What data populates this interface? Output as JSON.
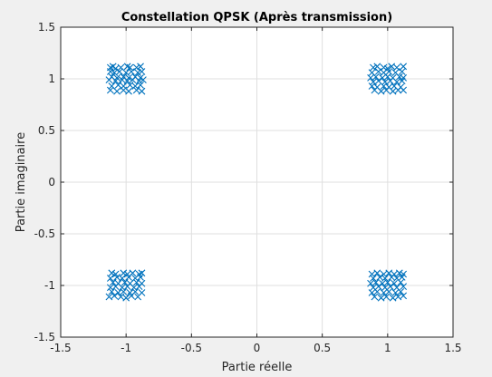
{
  "chart_data": {
    "type": "scatter",
    "title": "Constellation QPSK (Après transmission)",
    "xlabel": "Partie réelle",
    "ylabel": "Partie imaginaire",
    "xlim": [
      -1.5,
      1.5
    ],
    "ylim": [
      -1.5,
      1.5
    ],
    "xticks": [
      -1.5,
      -1,
      -0.5,
      0,
      0.5,
      1,
      1.5
    ],
    "yticks": [
      -1.5,
      -1,
      -0.5,
      0,
      0.5,
      1,
      1.5
    ],
    "xtick_labels": [
      "-1.5",
      "-1",
      "-0.5",
      "0",
      "0.5",
      "1",
      "1.5"
    ],
    "ytick_labels": [
      "-1.5",
      "-1",
      "-0.5",
      "0",
      "0.5",
      "1",
      "1.5"
    ],
    "grid": true,
    "marker": "x",
    "color": "#0072bd",
    "series": [
      {
        "points": [
          [
            -1.12,
            1.11
          ],
          [
            -1.1,
            1.12
          ],
          [
            -1.08,
            1.1
          ],
          [
            -1.04,
            1.11
          ],
          [
            -0.99,
            1.12
          ],
          [
            -0.97,
            1.11
          ],
          [
            -0.92,
            1.11
          ],
          [
            -0.89,
            1.12
          ],
          [
            -1.12,
            1.07
          ],
          [
            -1.09,
            1.06
          ],
          [
            -1.05,
            1.07
          ],
          [
            -1.0,
            1.06
          ],
          [
            -0.96,
            1.07
          ],
          [
            -0.91,
            1.06
          ],
          [
            -0.88,
            1.07
          ],
          [
            -1.11,
            1.02
          ],
          [
            -1.07,
            1.01
          ],
          [
            -1.02,
            1.02
          ],
          [
            -0.98,
            1.01
          ],
          [
            -0.93,
            1.02
          ],
          [
            -0.89,
            1.01
          ],
          [
            -1.13,
            0.99
          ],
          [
            -1.08,
            0.98
          ],
          [
            -1.03,
            0.99
          ],
          [
            -0.99,
            0.98
          ],
          [
            -0.95,
            0.99
          ],
          [
            -0.9,
            0.98
          ],
          [
            -0.87,
            0.99
          ],
          [
            -1.11,
            0.93
          ],
          [
            -1.06,
            0.94
          ],
          [
            -1.02,
            0.93
          ],
          [
            -0.97,
            0.94
          ],
          [
            -0.93,
            0.93
          ],
          [
            -0.89,
            0.94
          ],
          [
            -1.12,
            0.89
          ],
          [
            -1.07,
            0.88
          ],
          [
            -1.02,
            0.89
          ],
          [
            -0.98,
            0.88
          ],
          [
            -0.92,
            0.89
          ],
          [
            -0.88,
            0.88
          ],
          [
            0.89,
            1.11
          ],
          [
            0.92,
            1.12
          ],
          [
            0.97,
            1.11
          ],
          [
            1.0,
            1.1
          ],
          [
            1.03,
            1.12
          ],
          [
            1.07,
            1.11
          ],
          [
            1.12,
            1.12
          ],
          [
            0.88,
            1.06
          ],
          [
            0.93,
            1.07
          ],
          [
            0.97,
            1.06
          ],
          [
            1.01,
            1.07
          ],
          [
            1.06,
            1.06
          ],
          [
            1.11,
            1.07
          ],
          [
            0.87,
            1.01
          ],
          [
            0.91,
            1.02
          ],
          [
            0.96,
            1.01
          ],
          [
            1.0,
            1.02
          ],
          [
            1.04,
            1.01
          ],
          [
            1.09,
            1.02
          ],
          [
            1.12,
            1.01
          ],
          [
            0.89,
            0.97
          ],
          [
            0.93,
            0.98
          ],
          [
            0.98,
            0.97
          ],
          [
            1.02,
            0.98
          ],
          [
            1.07,
            0.97
          ],
          [
            1.11,
            0.98
          ],
          [
            0.88,
            0.93
          ],
          [
            0.92,
            0.92
          ],
          [
            0.97,
            0.93
          ],
          [
            1.01,
            0.92
          ],
          [
            1.05,
            0.93
          ],
          [
            1.1,
            0.92
          ],
          [
            0.9,
            0.89
          ],
          [
            0.95,
            0.88
          ],
          [
            0.99,
            0.89
          ],
          [
            1.04,
            0.88
          ],
          [
            1.08,
            0.89
          ],
          [
            1.12,
            0.89
          ],
          [
            -1.11,
            -0.88
          ],
          [
            -1.08,
            -0.89
          ],
          [
            -1.02,
            -0.88
          ],
          [
            -0.99,
            -0.89
          ],
          [
            -0.95,
            -0.88
          ],
          [
            -0.9,
            -0.89
          ],
          [
            -0.88,
            -0.88
          ],
          [
            -1.12,
            -0.93
          ],
          [
            -1.07,
            -0.92
          ],
          [
            -1.03,
            -0.93
          ],
          [
            -0.98,
            -0.92
          ],
          [
            -0.93,
            -0.93
          ],
          [
            -0.89,
            -0.92
          ],
          [
            -1.1,
            -0.97
          ],
          [
            -1.06,
            -0.98
          ],
          [
            -1.01,
            -0.97
          ],
          [
            -0.97,
            -0.98
          ],
          [
            -0.92,
            -0.97
          ],
          [
            -0.88,
            -0.98
          ],
          [
            -1.12,
            -1.02
          ],
          [
            -1.08,
            -1.01
          ],
          [
            -1.03,
            -1.02
          ],
          [
            -0.99,
            -1.01
          ],
          [
            -0.94,
            -1.02
          ],
          [
            -0.9,
            -1.01
          ],
          [
            -1.11,
            -1.06
          ],
          [
            -1.06,
            -1.07
          ],
          [
            -1.02,
            -1.06
          ],
          [
            -0.97,
            -1.07
          ],
          [
            -0.93,
            -1.06
          ],
          [
            -0.88,
            -1.07
          ],
          [
            -1.13,
            -1.11
          ],
          [
            -1.09,
            -1.1
          ],
          [
            -1.04,
            -1.11
          ],
          [
            -1.0,
            -1.12
          ],
          [
            -0.96,
            -1.1
          ],
          [
            -0.91,
            -1.11
          ],
          [
            0.88,
            -0.89
          ],
          [
            0.92,
            -0.88
          ],
          [
            0.97,
            -0.89
          ],
          [
            1.01,
            -0.88
          ],
          [
            1.05,
            -0.89
          ],
          [
            1.09,
            -0.88
          ],
          [
            1.12,
            -0.89
          ],
          [
            0.89,
            -0.93
          ],
          [
            0.94,
            -0.92
          ],
          [
            0.98,
            -0.93
          ],
          [
            1.03,
            -0.92
          ],
          [
            1.07,
            -0.93
          ],
          [
            1.11,
            -0.92
          ],
          [
            0.87,
            -0.98
          ],
          [
            0.91,
            -0.97
          ],
          [
            0.96,
            -0.98
          ],
          [
            1.0,
            -0.97
          ],
          [
            1.05,
            -0.98
          ],
          [
            1.1,
            -0.97
          ],
          [
            0.89,
            -1.02
          ],
          [
            0.93,
            -1.01
          ],
          [
            0.98,
            -1.02
          ],
          [
            1.02,
            -1.01
          ],
          [
            1.07,
            -1.02
          ],
          [
            1.12,
            -1.01
          ],
          [
            0.88,
            -1.07
          ],
          [
            0.92,
            -1.06
          ],
          [
            0.97,
            -1.07
          ],
          [
            1.01,
            -1.06
          ],
          [
            1.06,
            -1.07
          ],
          [
            1.1,
            -1.06
          ],
          [
            0.9,
            -1.11
          ],
          [
            0.95,
            -1.12
          ],
          [
            0.99,
            -1.11
          ],
          [
            1.04,
            -1.12
          ],
          [
            1.08,
            -1.11
          ],
          [
            1.12,
            -1.1
          ]
        ]
      }
    ]
  }
}
